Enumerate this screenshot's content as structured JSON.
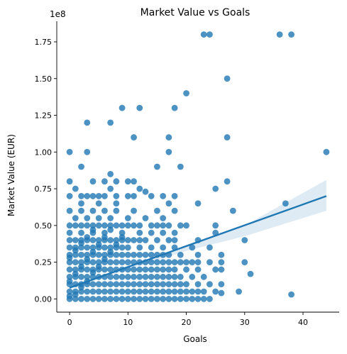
{
  "chart_data": {
    "type": "scatter",
    "title": "Market Value vs Goals",
    "xlabel": "Goals",
    "ylabel": "Market Value (EUR)",
    "y_offset_label": "1e8",
    "xlim": [
      -2.2,
      46.2
    ],
    "ylim": [
      -0.09,
      1.89
    ],
    "y_unit_multiplier": 100000000,
    "xticks": [
      0,
      10,
      20,
      30,
      40
    ],
    "xtick_labels": [
      "0",
      "10",
      "20",
      "30",
      "40"
    ],
    "yticks": [
      0.0,
      0.25,
      0.5,
      0.75,
      1.0,
      1.25,
      1.5,
      1.75
    ],
    "ytick_labels": [
      "0.00",
      "0.25",
      "0.50",
      "0.75",
      "1.00",
      "1.25",
      "1.50",
      "1.75"
    ],
    "grid": false,
    "legend": "none",
    "point_color": "#1f77b4",
    "regression": {
      "x": [
        0,
        44
      ],
      "y": [
        0.076,
        0.7
      ],
      "ci_x": [
        0,
        10,
        20,
        30,
        44
      ],
      "ci_lower": [
        0.067,
        0.2,
        0.327,
        0.427,
        0.6
      ],
      "ci_upper": [
        0.085,
        0.22,
        0.36,
        0.5,
        0.81
      ]
    },
    "points": [
      [
        23,
        1.8
      ],
      [
        24,
        1.8
      ],
      [
        36,
        1.8
      ],
      [
        38,
        1.8
      ],
      [
        27,
        1.5
      ],
      [
        20,
        1.4
      ],
      [
        9,
        1.3
      ],
      [
        12,
        1.3
      ],
      [
        18,
        1.3
      ],
      [
        3,
        1.2
      ],
      [
        7,
        1.2
      ],
      [
        11,
        1.1
      ],
      [
        17,
        1.1
      ],
      [
        27,
        1.1
      ],
      [
        0,
        1.0
      ],
      [
        3,
        1.0
      ],
      [
        17,
        1.0
      ],
      [
        44,
        1.0
      ],
      [
        2,
        0.9
      ],
      [
        15,
        0.9
      ],
      [
        19,
        0.9
      ],
      [
        0,
        0.8
      ],
      [
        4,
        0.8
      ],
      [
        6,
        0.8
      ],
      [
        8,
        0.8
      ],
      [
        10,
        0.8
      ],
      [
        11,
        0.8
      ],
      [
        27,
        0.8
      ],
      [
        7,
        0.85
      ],
      [
        1,
        0.75
      ],
      [
        5,
        0.7
      ],
      [
        7,
        0.75
      ],
      [
        12,
        0.75
      ],
      [
        13,
        0.73
      ],
      [
        25,
        0.75
      ],
      [
        0,
        0.7
      ],
      [
        2,
        0.7
      ],
      [
        3,
        0.7
      ],
      [
        4,
        0.7
      ],
      [
        6,
        0.7
      ],
      [
        8,
        0.7
      ],
      [
        10,
        0.7
      ],
      [
        11,
        0.7
      ],
      [
        14,
        0.7
      ],
      [
        16,
        0.7
      ],
      [
        18,
        0.7
      ],
      [
        22,
        0.65
      ],
      [
        37,
        0.65
      ],
      [
        2,
        0.65
      ],
      [
        5,
        0.65
      ],
      [
        8,
        0.65
      ],
      [
        17,
        0.65
      ],
      [
        0,
        0.6
      ],
      [
        2,
        0.6
      ],
      [
        4,
        0.6
      ],
      [
        6,
        0.6
      ],
      [
        8,
        0.6
      ],
      [
        11,
        0.6
      ],
      [
        15,
        0.6
      ],
      [
        18,
        0.6
      ],
      [
        28,
        0.6
      ],
      [
        1,
        0.55
      ],
      [
        3,
        0.55
      ],
      [
        5,
        0.55
      ],
      [
        7,
        0.55
      ],
      [
        10,
        0.55
      ],
      [
        13,
        0.55
      ],
      [
        16,
        0.55
      ],
      [
        0,
        0.5
      ],
      [
        1,
        0.5
      ],
      [
        2,
        0.5
      ],
      [
        3,
        0.5
      ],
      [
        4,
        0.5
      ],
      [
        5,
        0.5
      ],
      [
        6,
        0.5
      ],
      [
        7,
        0.5
      ],
      [
        8,
        0.5
      ],
      [
        9,
        0.5
      ],
      [
        10,
        0.5
      ],
      [
        11,
        0.5
      ],
      [
        12,
        0.5
      ],
      [
        14,
        0.5
      ],
      [
        15,
        0.5
      ],
      [
        16,
        0.5
      ],
      [
        17,
        0.5
      ],
      [
        19,
        0.5
      ],
      [
        20,
        0.5
      ],
      [
        25,
        0.5
      ],
      [
        0,
        0.45
      ],
      [
        2,
        0.45
      ],
      [
        4,
        0.45
      ],
      [
        6,
        0.45
      ],
      [
        9,
        0.45
      ],
      [
        12,
        0.45
      ],
      [
        14,
        0.45
      ],
      [
        16,
        0.45
      ],
      [
        18,
        0.45
      ],
      [
        25,
        0.45
      ],
      [
        0,
        0.4
      ],
      [
        1,
        0.4
      ],
      [
        2,
        0.4
      ],
      [
        3,
        0.4
      ],
      [
        4,
        0.4
      ],
      [
        5,
        0.4
      ],
      [
        6,
        0.4
      ],
      [
        7,
        0.4
      ],
      [
        8,
        0.4
      ],
      [
        9,
        0.4
      ],
      [
        10,
        0.4
      ],
      [
        11,
        0.4
      ],
      [
        12,
        0.4
      ],
      [
        13,
        0.4
      ],
      [
        15,
        0.4
      ],
      [
        17,
        0.4
      ],
      [
        18,
        0.4
      ],
      [
        22,
        0.4
      ],
      [
        30,
        0.4
      ],
      [
        0,
        0.35
      ],
      [
        1,
        0.35
      ],
      [
        2,
        0.35
      ],
      [
        3,
        0.35
      ],
      [
        4,
        0.35
      ],
      [
        5,
        0.35
      ],
      [
        6,
        0.35
      ],
      [
        7,
        0.35
      ],
      [
        8,
        0.35
      ],
      [
        9,
        0.35
      ],
      [
        10,
        0.35
      ],
      [
        12,
        0.35
      ],
      [
        14,
        0.35
      ],
      [
        16,
        0.35
      ],
      [
        18,
        0.35
      ],
      [
        21,
        0.35
      ],
      [
        24,
        0.35
      ],
      [
        0,
        0.3
      ],
      [
        1,
        0.3
      ],
      [
        2,
        0.3
      ],
      [
        3,
        0.3
      ],
      [
        4,
        0.3
      ],
      [
        5,
        0.3
      ],
      [
        6,
        0.3
      ],
      [
        7,
        0.3
      ],
      [
        8,
        0.3
      ],
      [
        9,
        0.3
      ],
      [
        10,
        0.3
      ],
      [
        11,
        0.3
      ],
      [
        12,
        0.3
      ],
      [
        13,
        0.3
      ],
      [
        14,
        0.3
      ],
      [
        15,
        0.3
      ],
      [
        16,
        0.3
      ],
      [
        17,
        0.3
      ],
      [
        19,
        0.3
      ],
      [
        22,
        0.3
      ],
      [
        26,
        0.3
      ],
      [
        0,
        0.25
      ],
      [
        1,
        0.25
      ],
      [
        2,
        0.25
      ],
      [
        3,
        0.25
      ],
      [
        4,
        0.25
      ],
      [
        5,
        0.25
      ],
      [
        6,
        0.25
      ],
      [
        7,
        0.25
      ],
      [
        8,
        0.25
      ],
      [
        9,
        0.25
      ],
      [
        10,
        0.25
      ],
      [
        11,
        0.25
      ],
      [
        12,
        0.25
      ],
      [
        13,
        0.25
      ],
      [
        14,
        0.25
      ],
      [
        15,
        0.25
      ],
      [
        16,
        0.25
      ],
      [
        17,
        0.25
      ],
      [
        18,
        0.25
      ],
      [
        19,
        0.25
      ],
      [
        20,
        0.25
      ],
      [
        21,
        0.25
      ],
      [
        22,
        0.25
      ],
      [
        24,
        0.25
      ],
      [
        26,
        0.25
      ],
      [
        30,
        0.25
      ],
      [
        0,
        0.2
      ],
      [
        1,
        0.2
      ],
      [
        2,
        0.2
      ],
      [
        3,
        0.2
      ],
      [
        4,
        0.2
      ],
      [
        5,
        0.2
      ],
      [
        6,
        0.2
      ],
      [
        7,
        0.2
      ],
      [
        8,
        0.2
      ],
      [
        9,
        0.2
      ],
      [
        10,
        0.2
      ],
      [
        11,
        0.2
      ],
      [
        12,
        0.2
      ],
      [
        13,
        0.2
      ],
      [
        14,
        0.2
      ],
      [
        15,
        0.2
      ],
      [
        16,
        0.2
      ],
      [
        17,
        0.2
      ],
      [
        18,
        0.2
      ],
      [
        20,
        0.2
      ],
      [
        22,
        0.2
      ],
      [
        25,
        0.2
      ],
      [
        26,
        0.2
      ],
      [
        0,
        0.15
      ],
      [
        1,
        0.15
      ],
      [
        2,
        0.15
      ],
      [
        3,
        0.15
      ],
      [
        4,
        0.15
      ],
      [
        5,
        0.15
      ],
      [
        6,
        0.15
      ],
      [
        7,
        0.15
      ],
      [
        8,
        0.15
      ],
      [
        9,
        0.15
      ],
      [
        10,
        0.15
      ],
      [
        11,
        0.15
      ],
      [
        12,
        0.15
      ],
      [
        13,
        0.15
      ],
      [
        14,
        0.15
      ],
      [
        15,
        0.15
      ],
      [
        16,
        0.15
      ],
      [
        17,
        0.15
      ],
      [
        18,
        0.15
      ],
      [
        19,
        0.15
      ],
      [
        21,
        0.15
      ],
      [
        23,
        0.15
      ],
      [
        31,
        0.17
      ],
      [
        0,
        0.1
      ],
      [
        1,
        0.1
      ],
      [
        2,
        0.1
      ],
      [
        3,
        0.1
      ],
      [
        4,
        0.1
      ],
      [
        5,
        0.1
      ],
      [
        6,
        0.1
      ],
      [
        7,
        0.1
      ],
      [
        8,
        0.1
      ],
      [
        9,
        0.1
      ],
      [
        10,
        0.1
      ],
      [
        11,
        0.1
      ],
      [
        12,
        0.1
      ],
      [
        13,
        0.1
      ],
      [
        14,
        0.1
      ],
      [
        15,
        0.1
      ],
      [
        16,
        0.1
      ],
      [
        17,
        0.1
      ],
      [
        18,
        0.1
      ],
      [
        19,
        0.1
      ],
      [
        20,
        0.1
      ],
      [
        22,
        0.1
      ],
      [
        24,
        0.1
      ],
      [
        26,
        0.1
      ],
      [
        0,
        0.05
      ],
      [
        1,
        0.05
      ],
      [
        2,
        0.05
      ],
      [
        3,
        0.05
      ],
      [
        4,
        0.05
      ],
      [
        5,
        0.05
      ],
      [
        6,
        0.05
      ],
      [
        7,
        0.05
      ],
      [
        8,
        0.05
      ],
      [
        9,
        0.05
      ],
      [
        10,
        0.05
      ],
      [
        11,
        0.05
      ],
      [
        12,
        0.05
      ],
      [
        13,
        0.05
      ],
      [
        14,
        0.05
      ],
      [
        15,
        0.05
      ],
      [
        16,
        0.05
      ],
      [
        17,
        0.05
      ],
      [
        18,
        0.05
      ],
      [
        19,
        0.05
      ],
      [
        20,
        0.05
      ],
      [
        21,
        0.05
      ],
      [
        22,
        0.05
      ],
      [
        23,
        0.05
      ],
      [
        25,
        0.05
      ],
      [
        29,
        0.05
      ],
      [
        26,
        0.04
      ],
      [
        0,
        0.0
      ],
      [
        1,
        0.0
      ],
      [
        2,
        0.0
      ],
      [
        3,
        0.0
      ],
      [
        4,
        0.0
      ],
      [
        5,
        0.0
      ],
      [
        6,
        0.0
      ],
      [
        7,
        0.0
      ],
      [
        8,
        0.0
      ],
      [
        9,
        0.0
      ],
      [
        10,
        0.0
      ],
      [
        11,
        0.0
      ],
      [
        12,
        0.0
      ],
      [
        13,
        0.0
      ],
      [
        14,
        0.0
      ],
      [
        15,
        0.0
      ],
      [
        16,
        0.0
      ],
      [
        17,
        0.0
      ],
      [
        18,
        0.0
      ],
      [
        19,
        0.0
      ],
      [
        20,
        0.0
      ],
      [
        21,
        0.0
      ],
      [
        22,
        0.0
      ],
      [
        23,
        0.0
      ],
      [
        24,
        0.0
      ],
      [
        38,
        0.03
      ],
      [
        0,
        0.02
      ],
      [
        1,
        0.03
      ],
      [
        2,
        0.08
      ],
      [
        3,
        0.12
      ],
      [
        4,
        0.18
      ],
      [
        5,
        0.22
      ],
      [
        6,
        0.27
      ],
      [
        7,
        0.32
      ],
      [
        8,
        0.37
      ],
      [
        9,
        0.42
      ],
      [
        0,
        0.28
      ],
      [
        1,
        0.33
      ],
      [
        2,
        0.38
      ],
      [
        3,
        0.42
      ],
      [
        4,
        0.47
      ],
      [
        0,
        0.12
      ],
      [
        1,
        0.17
      ],
      [
        2,
        0.22
      ],
      [
        3,
        0.27
      ],
      [
        4,
        0.32
      ],
      [
        5,
        0.37
      ],
      [
        6,
        0.42
      ],
      [
        7,
        0.47
      ]
    ]
  }
}
